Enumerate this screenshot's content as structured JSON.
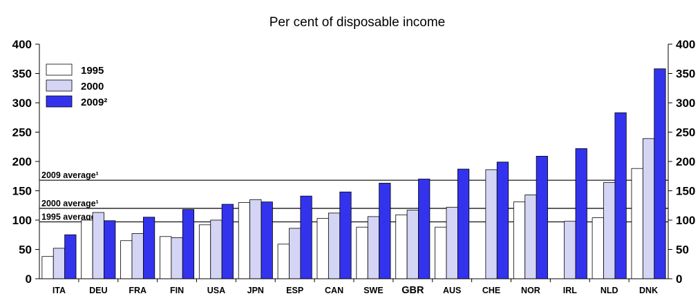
{
  "chart_data": {
    "type": "bar",
    "title": "Per cent of disposable income",
    "categories": [
      "ITA",
      "DEU",
      "FRA",
      "FIN",
      "USA",
      "JPN",
      "ESP",
      "CAN",
      "SWE",
      "GBR",
      "AUS",
      "CHE",
      "NOR",
      "IRL",
      "NLD",
      "DNK"
    ],
    "highlight_category": "GBR",
    "series": [
      {
        "name": "1995",
        "color": "#ffffff",
        "values": [
          38,
          100,
          65,
          72,
          92,
          130,
          59,
          103,
          88,
          109,
          88,
          null,
          131,
          null,
          104,
          188
        ]
      },
      {
        "name": "2000",
        "color": "#d4d4f4",
        "values": [
          52,
          113,
          77,
          70,
          100,
          135,
          86,
          112,
          106,
          117,
          122,
          186,
          143,
          98,
          164,
          239
        ]
      },
      {
        "name": "2009²",
        "color": "#3333ee",
        "values": [
          75,
          99,
          105,
          118,
          127,
          131,
          141,
          148,
          163,
          170,
          187,
          199,
          209,
          222,
          283,
          358
        ]
      }
    ],
    "reference_lines": [
      {
        "label": "2009 average¹",
        "value": 168
      },
      {
        "label": "2000 average¹",
        "value": 120
      },
      {
        "label": "1995 average¹",
        "value": 97
      }
    ],
    "ylim": [
      0,
      400
    ],
    "yticks": [
      0,
      50,
      100,
      150,
      200,
      250,
      300,
      350,
      400
    ],
    "ytick_labels": [
      "0",
      "50",
      "100",
      "150",
      "200",
      "250",
      "300",
      "350",
      "400"
    ],
    "legend_position": "top-left",
    "grid": false
  }
}
